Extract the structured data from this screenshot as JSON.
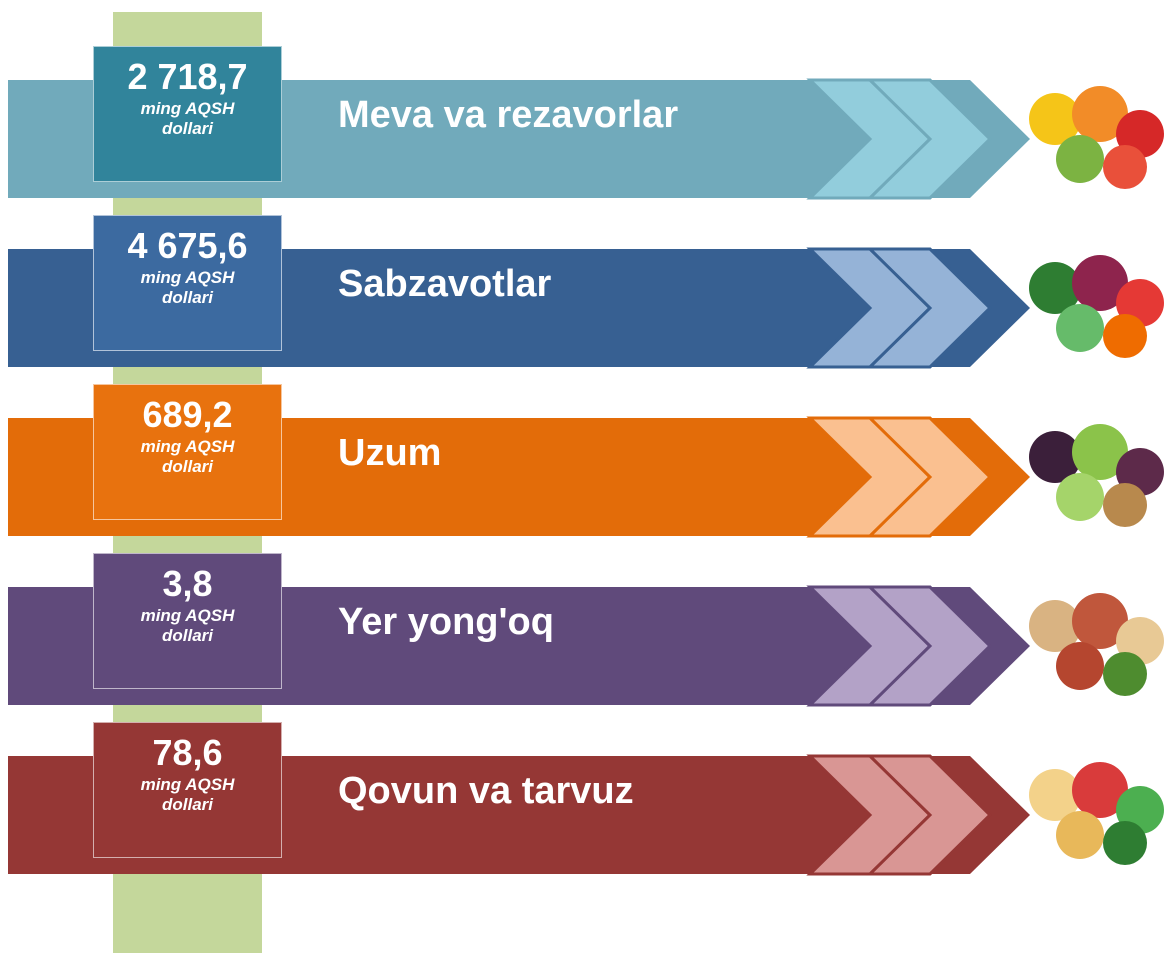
{
  "items": [
    {
      "value": "2 718,7",
      "unit": "ming AQSH dollari",
      "label": "Meva va rezavorlar"
    },
    {
      "value": "4 675,6",
      "unit": "ming AQSH dollari",
      "label": "Sabzavotlar"
    },
    {
      "value": "689,2",
      "unit": "ming AQSH dollari",
      "label": "Uzum"
    },
    {
      "value": "3,8",
      "unit": "ming AQSH dollari",
      "label": "Yer yong'oq"
    },
    {
      "value": "78,6",
      "unit": "ming AQSH dollari",
      "label": "Qovun va tarvuz"
    }
  ]
}
